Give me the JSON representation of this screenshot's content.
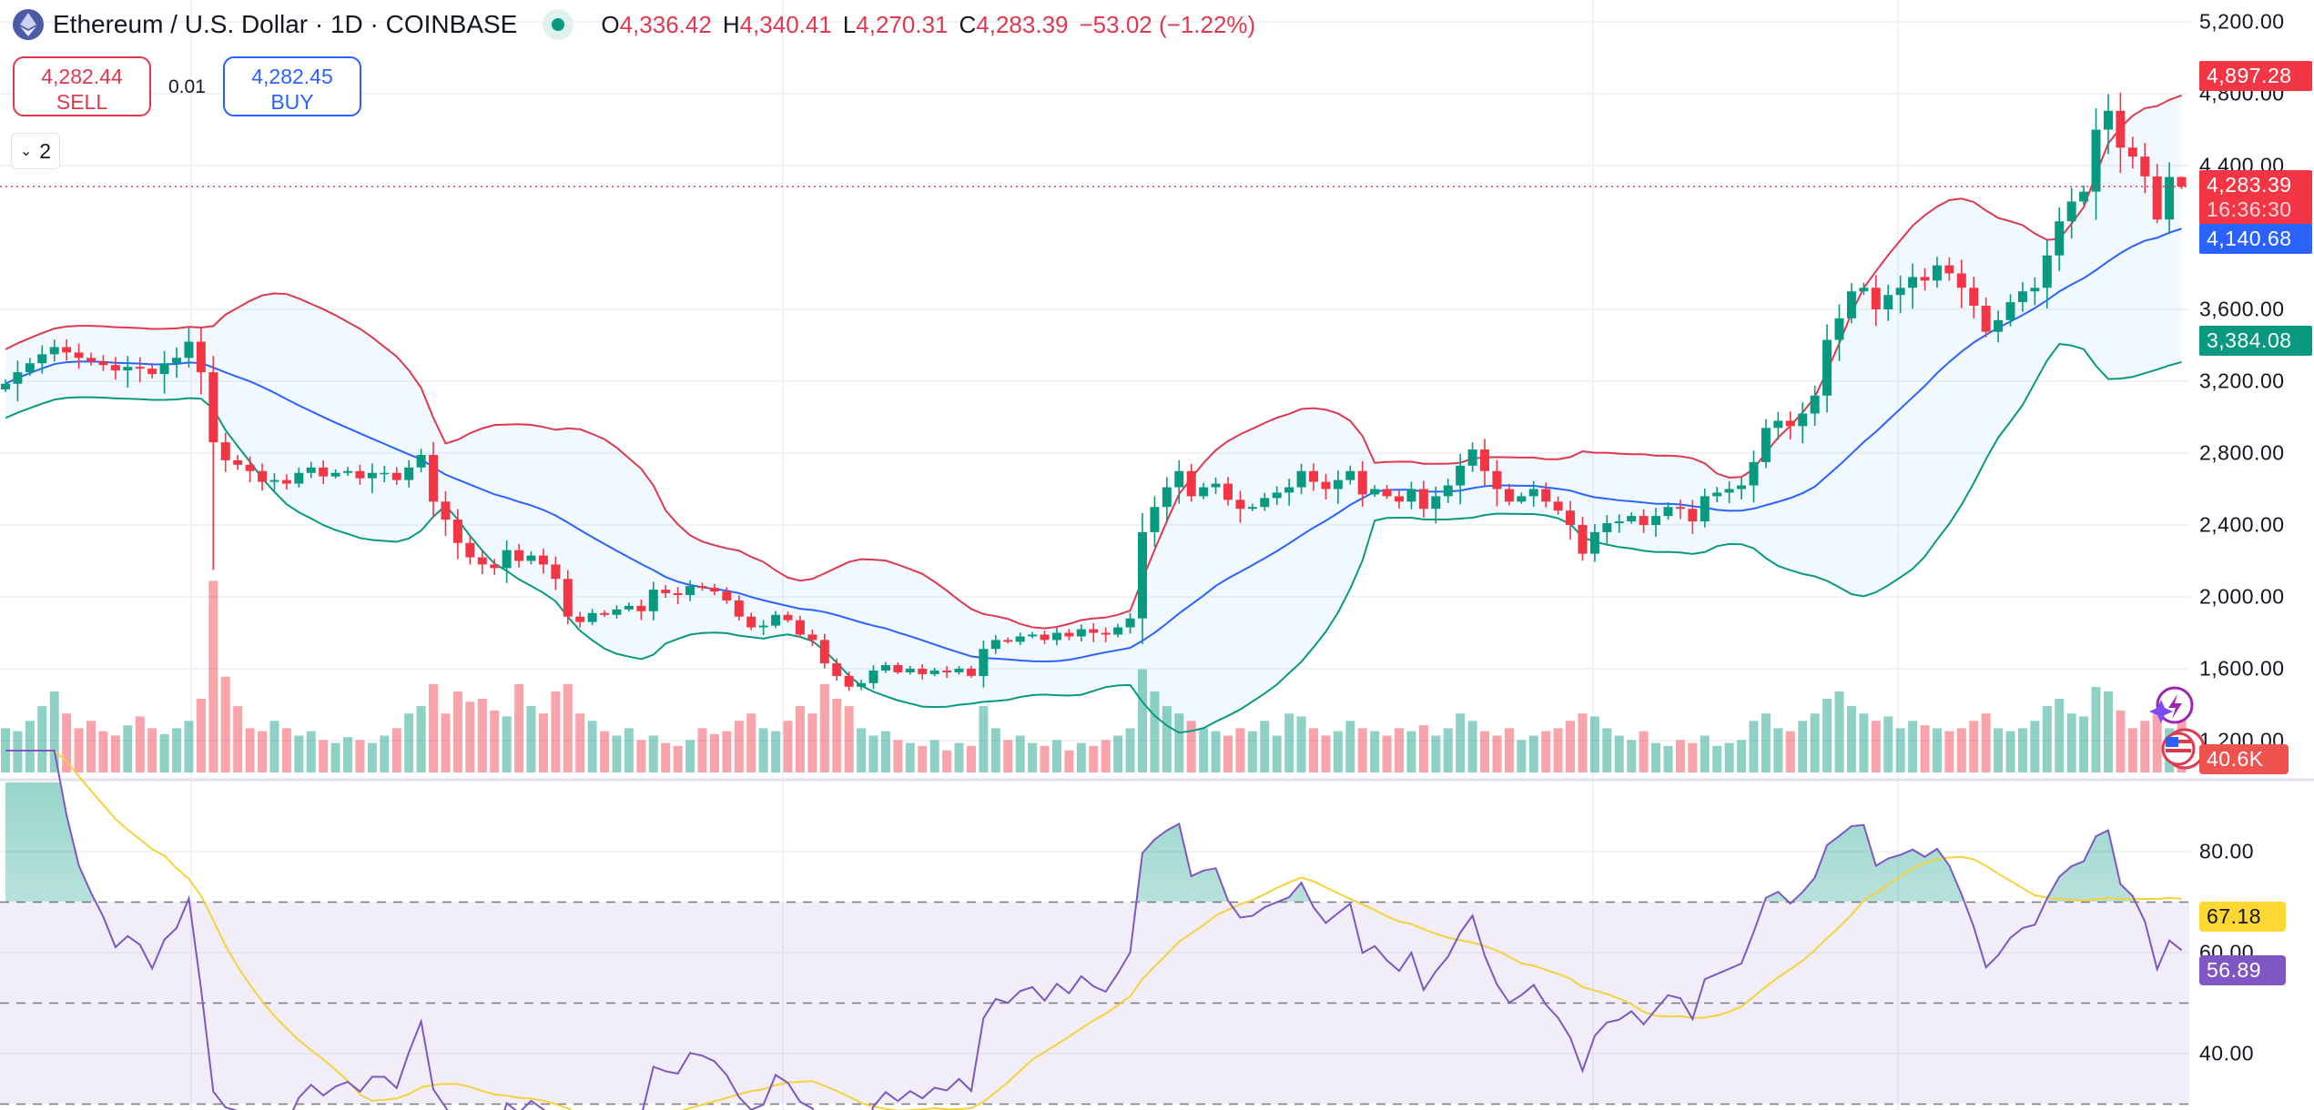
{
  "header": {
    "title": "Ethereum / U.S. Dollar · 1D · COINBASE",
    "o_label": "O",
    "o_value": "4,336.42",
    "h_label": "H",
    "h_value": "4,340.41",
    "l_label": "L",
    "l_value": "4,270.31",
    "c_label": "C",
    "c_value": "4,283.39",
    "change": "−53.02 (−1.22%)"
  },
  "trade": {
    "sell_price": "4,282.44",
    "sell_label": "SELL",
    "spread": "0.01",
    "buy_price": "4,282.45",
    "buy_label": "BUY"
  },
  "legend_toggle": {
    "icon": "chevron-down-icon",
    "count": "2"
  },
  "price_axis": {
    "labels": [
      "5,200.00",
      "4,800.00",
      "4,400.00",
      "3,600.00",
      "3,200.00",
      "2,800.00",
      "2,400.00",
      "2,000.00",
      "1,600.00",
      "1,200.00"
    ]
  },
  "rsi_axis": {
    "labels": [
      "80.00",
      "60.00",
      "40.00"
    ]
  },
  "badges": {
    "bb_upper": "4,897.28",
    "last_price": "4,283.39",
    "countdown": "16:36:30",
    "bb_basis": "4,140.68",
    "bb_lower": "3,384.08",
    "volume": "40.6K",
    "rsi_ma": "67.18",
    "rsi": "56.89"
  },
  "colors": {
    "up": "#089981",
    "down": "#f23645",
    "bb_upper": "#e0384f",
    "bb_basis": "#2962ff",
    "bb_lower": "#089981",
    "rsi": "#7e57c2",
    "rsi_ma": "#f5d23c"
  },
  "chart_data": {
    "type": "candlestick",
    "ylim": [
      1050,
      5250
    ],
    "price_ticks": [
      5200,
      4800,
      4400,
      3600,
      3200,
      2800,
      2400,
      2000,
      1600,
      1200
    ],
    "rsi_ticks": [
      80,
      60,
      40
    ],
    "rsi_bands": [
      70,
      50,
      30
    ],
    "close": [
      3186,
      3250,
      3300,
      3350,
      3390,
      3360,
      3330,
      3310,
      3290,
      3260,
      3280,
      3270,
      3240,
      3300,
      3330,
      3420,
      3250,
      2860,
      2760,
      2735,
      2700,
      2640,
      2650,
      2630,
      2690,
      2720,
      2670,
      2690,
      2700,
      2660,
      2690,
      2690,
      2650,
      2720,
      2790,
      2530,
      2430,
      2300,
      2220,
      2180,
      2160,
      2260,
      2200,
      2230,
      2180,
      2100,
      1890,
      1860,
      1910,
      1900,
      1930,
      1950,
      1920,
      2040,
      2020,
      2010,
      2060,
      2050,
      2030,
      1980,
      1890,
      1830,
      1840,
      1900,
      1870,
      1790,
      1760,
      1630,
      1560,
      1500,
      1520,
      1590,
      1620,
      1580,
      1600,
      1570,
      1590,
      1580,
      1600,
      1560,
      1710,
      1760,
      1750,
      1780,
      1790,
      1760,
      1800,
      1780,
      1820,
      1800,
      1790,
      1830,
      1880,
      2360,
      2500,
      2610,
      2700,
      2560,
      2610,
      2630,
      2540,
      2490,
      2500,
      2550,
      2580,
      2610,
      2700,
      2640,
      2600,
      2650,
      2700,
      2570,
      2600,
      2560,
      2530,
      2600,
      2490,
      2560,
      2620,
      2730,
      2820,
      2700,
      2600,
      2530,
      2560,
      2600,
      2530,
      2480,
      2400,
      2240,
      2360,
      2410,
      2420,
      2450,
      2400,
      2450,
      2500,
      2490,
      2420,
      2560,
      2580,
      2600,
      2620,
      2750,
      2940,
      2980,
      2950,
      3020,
      3120,
      3430,
      3550,
      3700,
      3720,
      3600,
      3680,
      3720,
      3780,
      3760,
      3845,
      3800,
      3720,
      3620,
      3475,
      3540,
      3640,
      3700,
      3720,
      3900,
      4090,
      4200,
      4255,
      4600,
      4705,
      4500,
      4450,
      4340,
      4100,
      4336.42,
      4283.39
    ],
    "last_candle": {
      "open": 4336.42,
      "high": 4340.41,
      "low": 4270.31,
      "close": 4283.39
    },
    "volume_k": [
      30,
      28,
      35,
      45,
      55,
      40,
      30,
      35,
      28,
      25,
      32,
      38,
      30,
      26,
      30,
      35,
      50,
      130,
      65,
      45,
      30,
      28,
      35,
      30,
      25,
      28,
      22,
      20,
      24,
      22,
      20,
      25,
      30,
      40,
      45,
      60,
      40,
      55,
      48,
      50,
      42,
      38,
      60,
      45,
      40,
      55,
      60,
      40,
      35,
      28,
      25,
      30,
      22,
      25,
      20,
      18,
      22,
      30,
      26,
      28,
      35,
      40,
      30,
      28,
      35,
      45,
      40,
      60,
      50,
      45,
      30,
      25,
      28,
      22,
      20,
      18,
      22,
      15,
      20,
      18,
      45,
      30,
      22,
      25,
      20,
      18,
      22,
      15,
      20,
      18,
      22,
      25,
      30,
      70,
      55,
      45,
      40,
      35,
      30,
      28,
      25,
      30,
      28,
      35,
      25,
      40,
      38,
      30,
      25,
      28,
      35,
      30,
      28,
      25,
      30,
      28,
      32,
      25,
      30,
      40,
      35,
      28,
      25,
      30,
      22,
      25,
      28,
      30,
      35,
      40,
      38,
      30,
      25,
      22,
      28,
      20,
      18,
      22,
      20,
      25,
      18,
      20,
      22,
      35,
      40,
      30,
      28,
      35,
      40,
      50,
      55,
      45,
      40,
      35,
      38,
      30,
      35,
      32,
      30,
      28,
      30,
      35,
      40,
      30,
      28,
      30,
      35,
      45,
      50,
      40,
      38,
      58,
      55,
      42,
      30,
      35,
      40,
      30,
      40.6
    ]
  }
}
